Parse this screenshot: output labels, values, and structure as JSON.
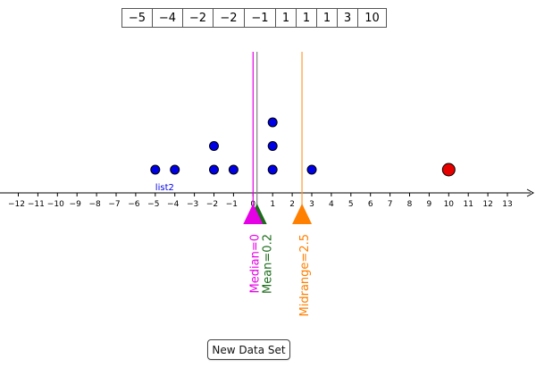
{
  "data_table": {
    "values": [
      "−5",
      "−4",
      "−2",
      "−2",
      "−1",
      "1",
      "1",
      "1",
      "3",
      "10"
    ]
  },
  "chart_data": {
    "type": "scatter",
    "subtype": "dot plot",
    "x_axis": {
      "min": -12,
      "max": 13,
      "step": 1,
      "tick_labels": [
        "−12",
        "−11",
        "−10",
        "−9",
        "−8",
        "−7",
        "−6",
        "−5",
        "−4",
        "−3",
        "−2",
        "−1",
        "0",
        "1",
        "2",
        "3",
        "4",
        "5",
        "6",
        "7",
        "8",
        "9",
        "10",
        "11",
        "12",
        "13"
      ]
    },
    "series": [
      {
        "name": "list2",
        "color": "#0000e6",
        "points": [
          {
            "x": -5,
            "stack": 1
          },
          {
            "x": -4,
            "stack": 1
          },
          {
            "x": -2,
            "stack": 1
          },
          {
            "x": -2,
            "stack": 2
          },
          {
            "x": -1,
            "stack": 1
          },
          {
            "x": 1,
            "stack": 1
          },
          {
            "x": 1,
            "stack": 2
          },
          {
            "x": 1,
            "stack": 3
          },
          {
            "x": 3,
            "stack": 1
          }
        ]
      },
      {
        "color": "#e60000",
        "points": [
          {
            "x": 10,
            "stack": 1
          }
        ]
      }
    ],
    "markers": [
      {
        "label": "Median=0",
        "value": 0,
        "color": "#e600e6",
        "line_color": "#e600e6"
      },
      {
        "label": "Mean=0.2",
        "value": 0.2,
        "color": "#1a6b1a",
        "line_color": "#808080"
      },
      {
        "label": "Midrange=2.5",
        "value": 2.5,
        "color": "#ff7f00",
        "line_color": "#ff9933"
      }
    ],
    "grid": false
  },
  "buttons": {
    "new_data_set": "New Data Set"
  }
}
